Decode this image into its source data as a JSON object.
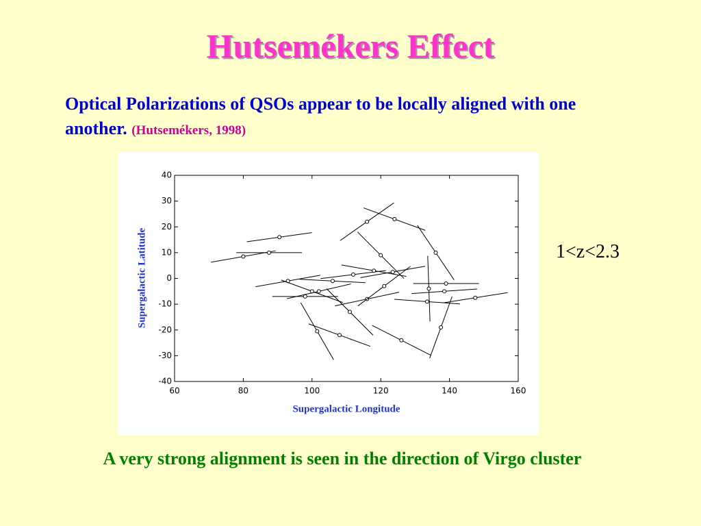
{
  "title": "Hutsemékers Effect",
  "subtitle": "Optical Polarizations of QSOs appear to be  locally aligned with one another.",
  "citation": "(Hutsemékers, 1998)",
  "side_label": "1<z<2.3",
  "footer": "A very strong alignment is seen in the direction of Virgo  cluster",
  "chart_data": {
    "type": "scatter",
    "x_label": "Supergalactic Longitude",
    "y_label": "Supergalactic Latitude",
    "xlim": [
      60,
      160
    ],
    "xticks": [
      60,
      80,
      100,
      120,
      140,
      160
    ],
    "ylim": [
      -40,
      40
    ],
    "yticks": [
      -40,
      -30,
      -20,
      -10,
      0,
      10,
      20,
      30,
      40
    ],
    "color": "#000000",
    "x": [
      80,
      87.5,
      90.5,
      93,
      98,
      100,
      102,
      106,
      101.5,
      108,
      111,
      112,
      116,
      116,
      118,
      120,
      121,
      123.5,
      124,
      126,
      134,
      133.5,
      136,
      137.5,
      139,
      138.5,
      147.5
    ],
    "y": [
      8.5,
      10,
      16,
      -1,
      -7,
      -5,
      -5,
      -1,
      -20.5,
      -22,
      -13,
      1.5,
      22,
      -8,
      3,
      9,
      -3,
      2.5,
      23,
      -24,
      -4,
      -9,
      10,
      -19,
      -2,
      -5,
      -7.5
    ],
    "angles": [
      10,
      0,
      8,
      10,
      0,
      -20,
      13,
      -3,
      -60,
      -20,
      -45,
      7,
      35,
      12,
      -10,
      -45,
      37,
      10,
      -20,
      -27,
      -88,
      -4,
      -56,
      70,
      0,
      4,
      9
    ]
  }
}
